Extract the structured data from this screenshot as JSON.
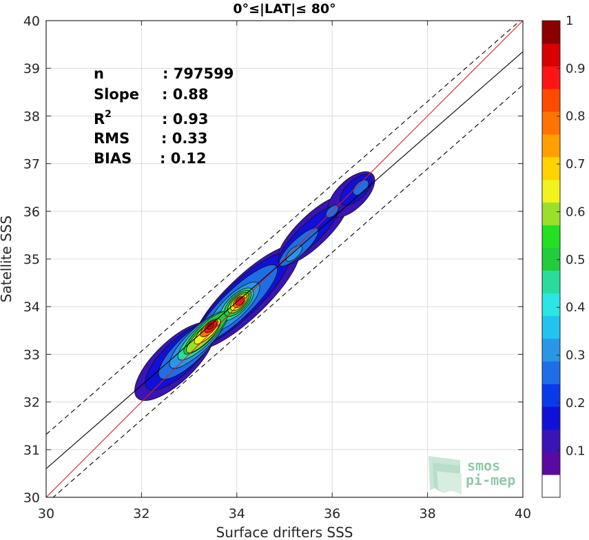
{
  "chart_data": {
    "type": "heatmap",
    "title": "0°≤|LAT|≤ 80°",
    "xlabel": "Surface drifters SSS",
    "ylabel": "Satellite SSS",
    "xlim": [
      30,
      40
    ],
    "ylim": [
      30,
      40
    ],
    "x_ticks": [
      "30",
      "32",
      "34",
      "36",
      "38",
      "40"
    ],
    "y_ticks": [
      "30",
      "31",
      "32",
      "33",
      "34",
      "35",
      "36",
      "37",
      "38",
      "39",
      "40"
    ],
    "grid": true,
    "stats": [
      {
        "label": "n",
        "value": ": 797599"
      },
      {
        "label": "Slope",
        "value": ": 0.88"
      },
      {
        "label": "R",
        "sup": "2",
        "value": ": 0.93"
      },
      {
        "label": "RMS",
        "value": ": 0.33"
      },
      {
        "label": "BIAS",
        "value": ": 0.12"
      }
    ],
    "lines": [
      {
        "name": "identity",
        "color": "#e41a1c",
        "style": "solid",
        "intercept": 0,
        "slope": 1
      },
      {
        "name": "regression",
        "color": "#000000",
        "style": "solid",
        "points": [
          [
            30,
            30.6
          ],
          [
            40,
            39.35
          ]
        ]
      },
      {
        "name": "upper bound",
        "color": "#000000",
        "style": "dashed",
        "points": [
          [
            30,
            31.32
          ],
          [
            40,
            40.05
          ]
        ]
      },
      {
        "name": "lower bound",
        "color": "#000000",
        "style": "dashed",
        "points": [
          [
            30,
            29.87
          ],
          [
            40,
            38.65
          ]
        ]
      }
    ],
    "density_peaks": [
      {
        "x": 33.45,
        "y": 33.6,
        "level": 0.95
      },
      {
        "x": 34.0,
        "y": 34.1,
        "level": 0.9
      },
      {
        "x": 35.2,
        "y": 35.1,
        "level": 0.45
      },
      {
        "x": 36.0,
        "y": 36.0,
        "level": 0.25
      },
      {
        "x": 36.6,
        "y": 36.5,
        "level": 0.25
      }
    ],
    "colorbar": {
      "levels": [
        0,
        0.05,
        0.1,
        0.15,
        0.2,
        0.25,
        0.3,
        0.35,
        0.4,
        0.45,
        0.5,
        0.55,
        0.6,
        0.65,
        0.7,
        0.75,
        0.8,
        0.85,
        0.9,
        0.95,
        1.0
      ],
      "colors": [
        "#ffffff",
        "#5a0aa0",
        "#3a14b4",
        "#1010d8",
        "#0a3ae8",
        "#1e6ee6",
        "#2a96e6",
        "#22c4ee",
        "#2ce6e6",
        "#28dc9c",
        "#22cc3c",
        "#22e022",
        "#9ae02a",
        "#f2f21e",
        "#ffd200",
        "#ffa000",
        "#ff7300",
        "#ff4a00",
        "#ff1414",
        "#d80000",
        "#8c0000"
      ],
      "tick_labels": [
        "0.1",
        "0.2",
        "0.3",
        "0.4",
        "0.5",
        "0.6",
        "0.7",
        "0.8",
        "0.9",
        "1"
      ],
      "tick_values": [
        0.1,
        0.2,
        0.3,
        0.4,
        0.5,
        0.6,
        0.7,
        0.8,
        0.9,
        1.0
      ]
    }
  },
  "logo": {
    "line1": "smos",
    "line2": "pi-mep"
  }
}
